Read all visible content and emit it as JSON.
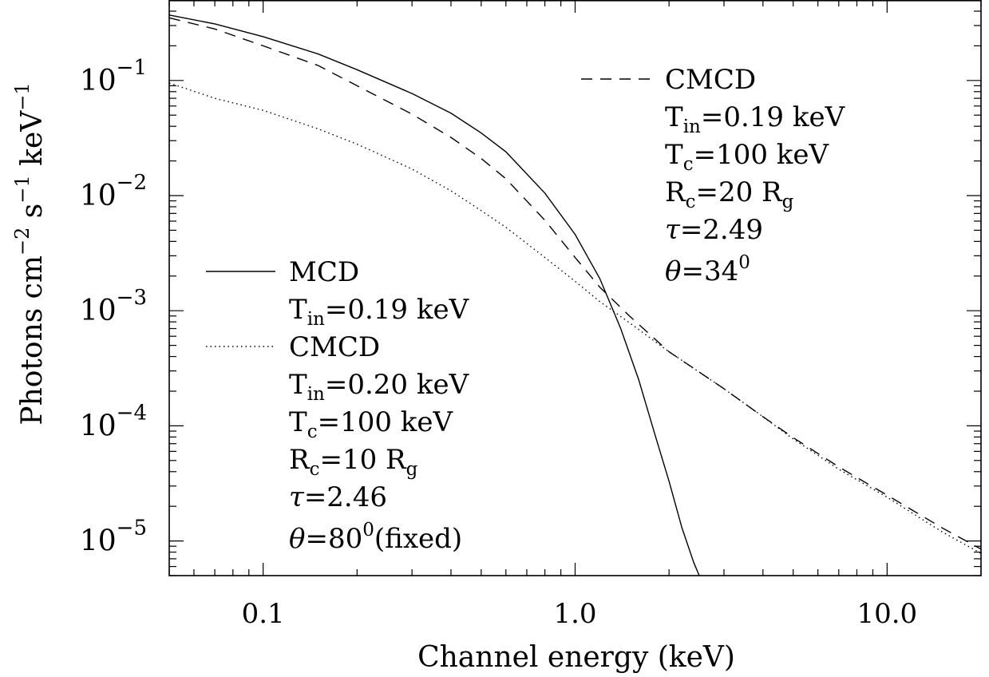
{
  "chart_data": {
    "type": "line",
    "xlabel": "Channel energy (keV)",
    "ylabel": "Photons cm",
    "ylabel_parts": {
      "photons": "Photons cm",
      "exp_cm": "−2",
      "s": "s",
      "exp_s": "−1",
      "kev": "keV",
      "exp_kev": "−1"
    },
    "x_scale": "log",
    "y_scale": "log",
    "xlim": [
      0.05,
      20
    ],
    "ylim": [
      5e-06,
      0.5
    ],
    "x_ticks": [
      {
        "value": 0.1,
        "label": "0.1"
      },
      {
        "value": 1.0,
        "label": "1.0"
      },
      {
        "value": 10.0,
        "label": "10.0"
      }
    ],
    "y_ticks": [
      {
        "value": 0.1,
        "base": "10",
        "exp": "−1"
      },
      {
        "value": 0.01,
        "base": "10",
        "exp": "−2"
      },
      {
        "value": 0.001,
        "base": "10",
        "exp": "−3"
      },
      {
        "value": 0.0001,
        "base": "10",
        "exp": "−4"
      },
      {
        "value": 1e-05,
        "base": "10",
        "exp": "−5"
      }
    ],
    "grid": false,
    "series": [
      {
        "name": "MCD",
        "style": "solid",
        "x": [
          0.05,
          0.07,
          0.1,
          0.15,
          0.2,
          0.3,
          0.4,
          0.5,
          0.6,
          0.8,
          1.0,
          1.2,
          1.4,
          1.6,
          1.8,
          2.0,
          2.2,
          2.4,
          2.5
        ],
        "y": [
          0.37,
          0.31,
          0.24,
          0.17,
          0.124,
          0.077,
          0.052,
          0.035,
          0.024,
          0.0105,
          0.0046,
          0.0019,
          0.0007,
          0.00025,
          8.5e-05,
          3.3e-05,
          1.3e-05,
          6.5e-06,
          5e-06
        ]
      },
      {
        "name": "CMCD",
        "style": "dashed",
        "x": [
          0.05,
          0.07,
          0.1,
          0.15,
          0.2,
          0.3,
          0.4,
          0.5,
          0.6,
          0.8,
          1.0,
          1.2,
          1.5,
          2.0,
          3.0,
          4.0,
          5.0,
          7.0,
          10.0,
          15.0,
          20.0
        ],
        "y": [
          0.35,
          0.28,
          0.2,
          0.135,
          0.09,
          0.051,
          0.032,
          0.021,
          0.014,
          0.0061,
          0.0029,
          0.0016,
          0.00089,
          0.00044,
          0.00021,
          0.00012,
          7.9e-05,
          4.4e-05,
          2.5e-05,
          1.3e-05,
          8.5e-06
        ]
      },
      {
        "name": "CMCD",
        "style": "dotted",
        "x": [
          0.05,
          0.07,
          0.1,
          0.15,
          0.2,
          0.3,
          0.4,
          0.5,
          0.6,
          0.8,
          1.0,
          1.2,
          1.5,
          2.0,
          3.0,
          4.0,
          5.0,
          7.0,
          10.0,
          15.0,
          20.0
        ],
        "y": [
          0.095,
          0.07,
          0.055,
          0.038,
          0.028,
          0.017,
          0.011,
          0.0074,
          0.0053,
          0.0029,
          0.0018,
          0.0012,
          0.00078,
          0.00044,
          0.00021,
          0.00012,
          7.7e-05,
          4.2e-05,
          2.4e-05,
          1.2e-05,
          7.8e-06
        ]
      }
    ],
    "legend_placement": "inside",
    "legends": {
      "left": {
        "mcd_name": "MCD",
        "mcd_tin": {
          "T": "T",
          "sub": "in",
          "rest": "=0.19 keV"
        },
        "cmcd_name": "CMCD",
        "cmcd_tin": {
          "T": "T",
          "sub": "in",
          "rest": "=0.20 keV"
        },
        "cmcd_tc": {
          "T": "T",
          "sub": "c",
          "rest": "=100 keV"
        },
        "cmcd_rc": {
          "R": "R",
          "sub": "c",
          "rest": "=10 R",
          "sub2": "g"
        },
        "cmcd_tau": {
          "sym": "τ",
          "rest": "=2.46"
        },
        "cmcd_theta": {
          "sym": "θ",
          "val": "=80",
          "sup": "0",
          "tail": "(fixed)"
        }
      },
      "right": {
        "cmcd_name": "CMCD",
        "cmcd_tin": {
          "T": "T",
          "sub": "in",
          "rest": "=0.19 keV"
        },
        "cmcd_tc": {
          "T": "T",
          "sub": "c",
          "rest": "=100 keV"
        },
        "cmcd_rc": {
          "R": "R",
          "sub": "c",
          "rest": "=20 R",
          "sub2": "g"
        },
        "cmcd_tau": {
          "sym": "τ",
          "rest": "=2.49"
        },
        "cmcd_theta": {
          "sym": "θ",
          "val": "=34",
          "sup": "0",
          "tail": ""
        }
      }
    }
  }
}
